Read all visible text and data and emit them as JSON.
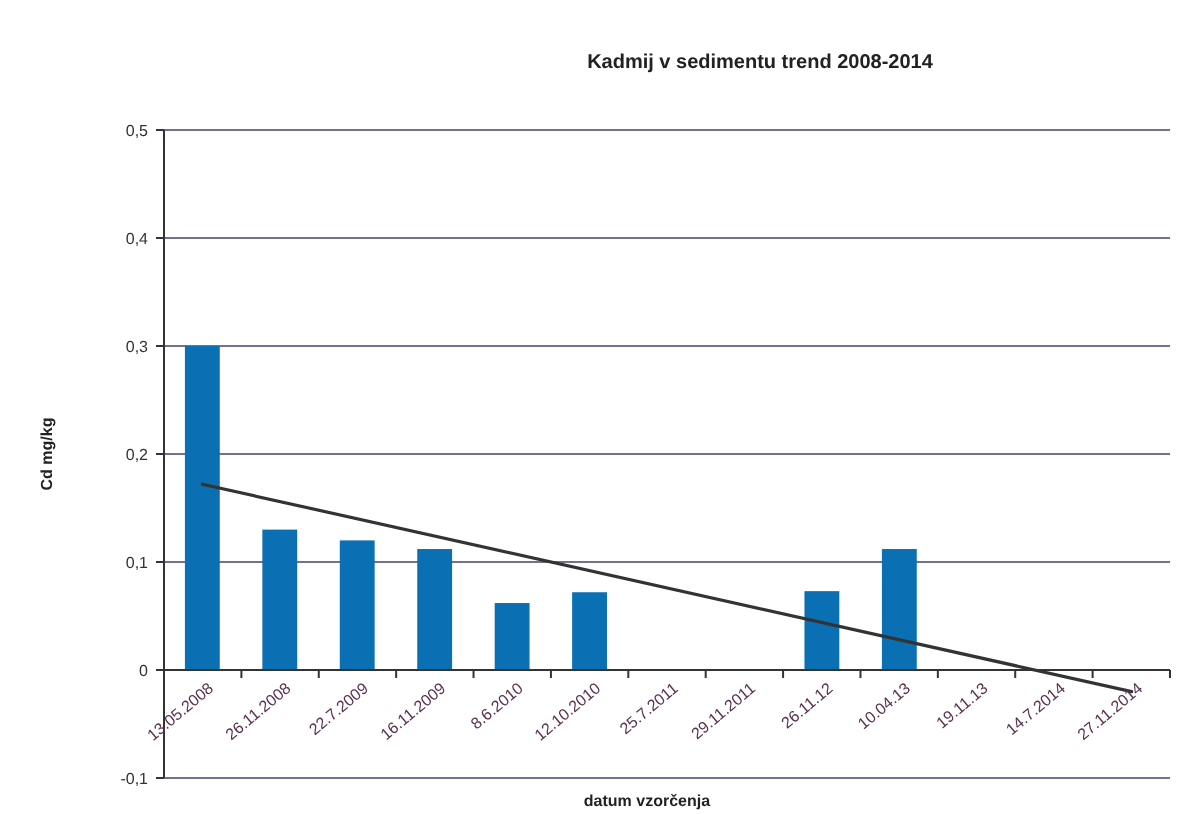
{
  "chart_data": {
    "type": "bar",
    "title": "Kadmij v sedimentu trend 2008-2014",
    "xlabel": "datum vzorčenja",
    "ylabel": "Cd mg/kg",
    "categories": [
      "13.05.2008",
      "26.11.2008",
      "22.7.2009",
      "16.11.2009",
      "8.6.2010",
      "12.10.2010",
      "25.7.2011",
      "29.11.2011",
      "26.11.12",
      "10.04.13",
      "19.11.13",
      "14.7.2014",
      "27.11.2014"
    ],
    "series": [
      {
        "color": "#0a6fb3",
        "values": [
          0.3,
          0.13,
          0.12,
          0.112,
          0.062,
          0.072,
          null,
          null,
          0.073,
          0.112,
          null,
          null,
          null
        ]
      },
      {
        "type": "line",
        "color": "#333333",
        "x": [
          "13.05.2008",
          "27.11.2014"
        ],
        "values": [
          0.172,
          -0.02
        ]
      }
    ],
    "ylim": [
      -0.1,
      0.5
    ],
    "yticks": [
      {
        "value": -0.1,
        "label": "-0,1"
      },
      0,
      {
        "value": 0.1,
        "label": "0,1"
      },
      {
        "value": 0.2,
        "label": "0,2"
      },
      {
        "value": 0.3,
        "label": "0,3"
      },
      {
        "value": 0.4,
        "label": "0,4"
      },
      {
        "value": 0.5,
        "label": "0,5"
      }
    ],
    "grid": "y"
  }
}
